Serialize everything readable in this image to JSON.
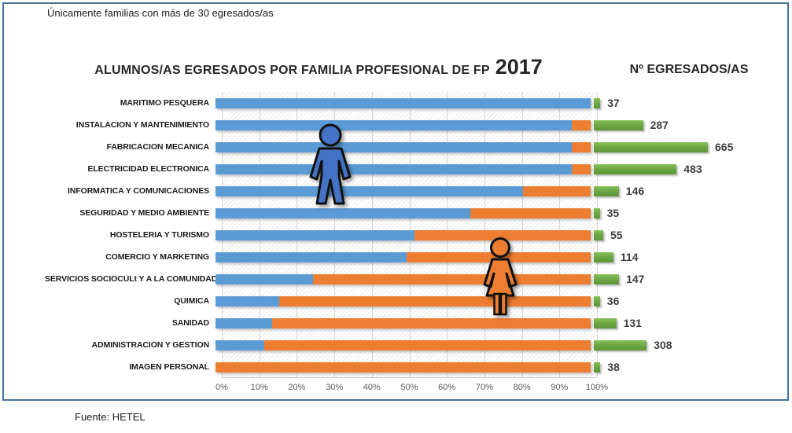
{
  "note": "Únicamente familias con más de 30 egresados/as",
  "title": {
    "main": "ALUMNOS/AS EGRESADOS POR FAMILIA PROFESIONAL DE FP",
    "year": "2017"
  },
  "right_header": "Nº EGRESADOS/AS",
  "footer": "Fuente: HETEL",
  "colors": {
    "male_bar": "#5B9BD5",
    "female_bar": "#ED7D31",
    "count_bar": "#70AD47",
    "frame_border": "#41719C",
    "male_icon": "#4472C4",
    "female_icon": "#ED7D31"
  },
  "chart_data": {
    "type": "bar",
    "orientation": "horizontal",
    "stacked_percent": true,
    "grid": true,
    "title": "ALUMNOS/AS EGRESADOS POR FAMILIA PROFESIONAL DE FP 2017",
    "categories": [
      "MARITIMO PESQUERA",
      "INSTALACION Y MANTENIMIENTO",
      "FABRICACION MECANICA",
      "ELECTRICIDAD ELECTRONICA",
      "INFORMATICA Y  COMUNICACIONES",
      "SEGURIDAD Y MEDIO AMBIENTE",
      "HOSTELERIA Y TURISMO",
      "COMERCIO Y MARKETING",
      "SERVICIOS SOCIOCULt Y A LA COMUNIDAD",
      "QUIMICA",
      "SANIDAD",
      "ADMINISTRACION Y GESTION",
      "IMAGEN PERSONAL"
    ],
    "series": [
      {
        "name": "male",
        "color": "#5B9BD5",
        "values": [
          100,
          95,
          95,
          95,
          82,
          68,
          53,
          51,
          26,
          17,
          15,
          13,
          0
        ]
      },
      {
        "name": "female",
        "color": "#ED7D31",
        "values": [
          0,
          5,
          5,
          5,
          18,
          32,
          47,
          49,
          74,
          83,
          85,
          87,
          100
        ]
      }
    ],
    "totals": {
      "label": "Nº EGRESADOS/AS",
      "color": "#70AD47",
      "values": [
        37,
        287,
        665,
        483,
        146,
        35,
        55,
        114,
        147,
        36,
        131,
        308,
        38
      ]
    },
    "x_ticks": [
      "0%",
      "10%",
      "20%",
      "30%",
      "40%",
      "50%",
      "60%",
      "70%",
      "80%",
      "90%",
      "100%"
    ],
    "xlim": [
      0,
      100
    ],
    "legend_icons": [
      {
        "name": "male-person-icon",
        "color": "#4472C4"
      },
      {
        "name": "female-person-icon",
        "color": "#ED7D31"
      }
    ]
  }
}
